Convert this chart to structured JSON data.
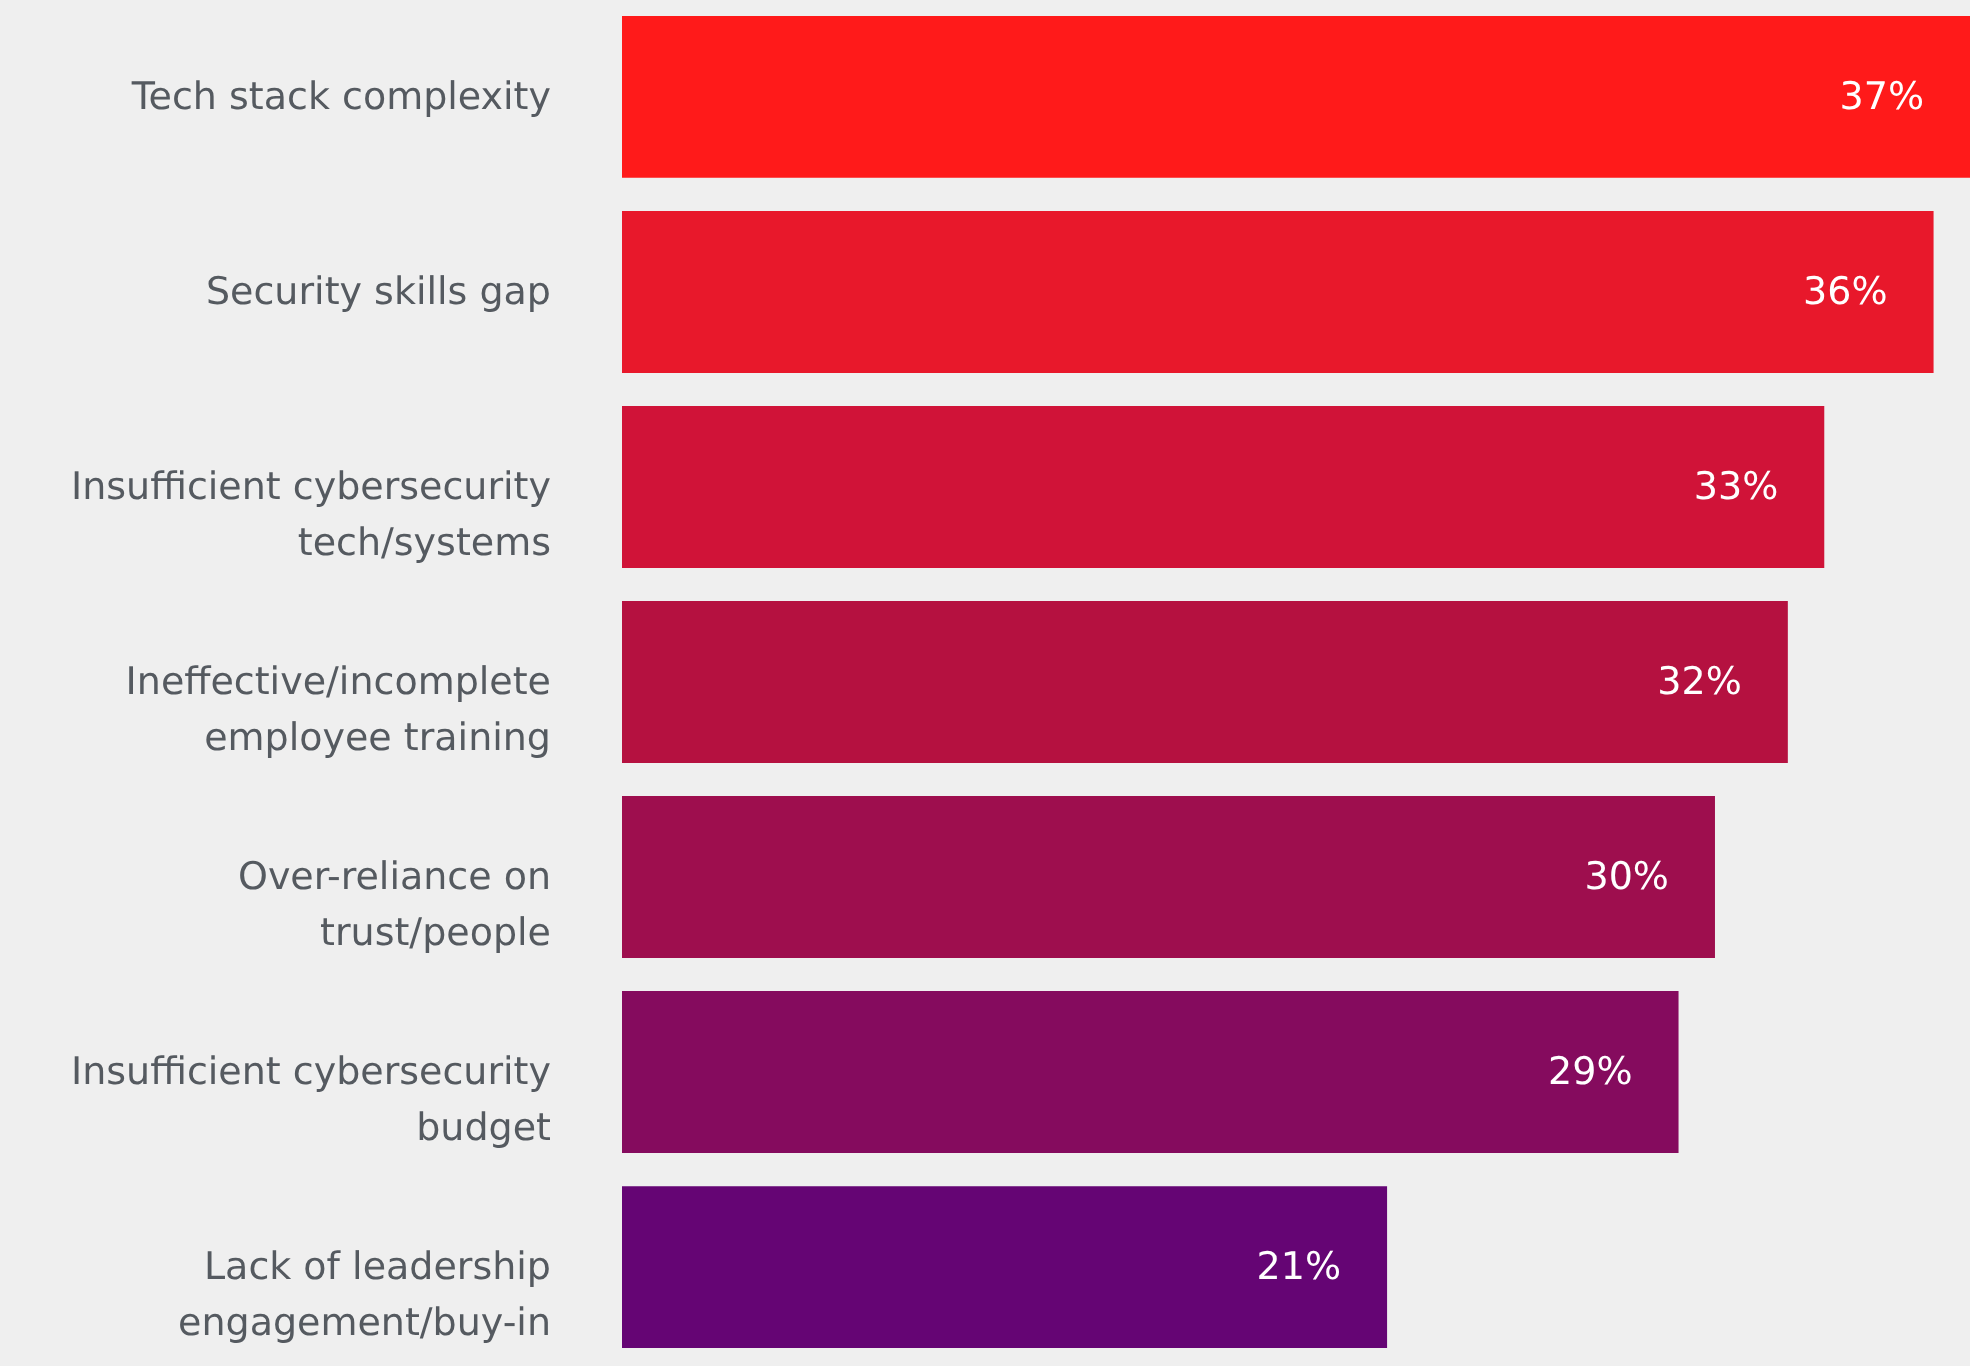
{
  "chart_data": {
    "type": "bar",
    "orientation": "horizontal",
    "categories": [
      "Tech stack complexity",
      "Security skills gap",
      "Insufficient cybersecurity tech/systems",
      "Ineffective/incomplete employee training",
      "Over-reliance on trust/people",
      "Insufficient cybersecurity budget",
      "Lack of leadership engagement/buy-in"
    ],
    "values": [
      37,
      36,
      33,
      32,
      30,
      29,
      21
    ],
    "colors": [
      "#ff1a1a",
      "#e8182b",
      "#d01338",
      "#b51140",
      "#9e0e4e",
      "#850b5e",
      "#650574"
    ],
    "xlim": [
      0,
      37
    ],
    "data_labels": true,
    "value_labels": [
      "37%",
      "36%",
      "33%",
      "32%",
      "30%",
      "29%",
      "21%"
    ],
    "tick_labels": "y"
  }
}
